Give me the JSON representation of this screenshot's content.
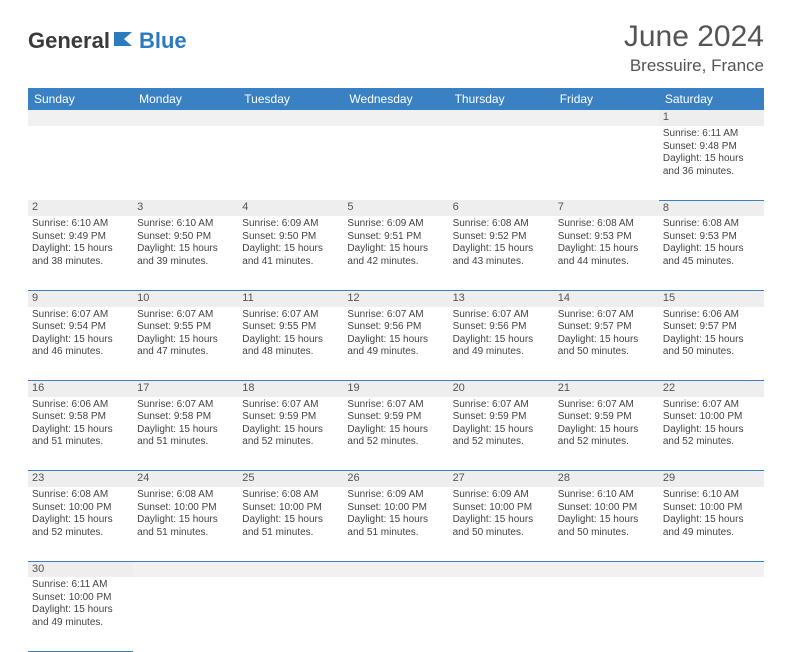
{
  "brand": {
    "part1": "General",
    "part2": "Blue"
  },
  "title": "June 2024",
  "location": "Bressuire, France",
  "colors": {
    "header_bg": "#3a81c4",
    "header_text": "#ffffff",
    "daynum_bg": "#eeeeee",
    "border": "#3a81c4",
    "text": "#444444",
    "brand_blue": "#2b7bbf"
  },
  "day_headers": [
    "Sunday",
    "Monday",
    "Tuesday",
    "Wednesday",
    "Thursday",
    "Friday",
    "Saturday"
  ],
  "weeks": [
    [
      null,
      null,
      null,
      null,
      null,
      null,
      {
        "n": "1",
        "sr": "6:11 AM",
        "ss": "9:48 PM",
        "dh": "15",
        "dm": "36"
      }
    ],
    [
      {
        "n": "2",
        "sr": "6:10 AM",
        "ss": "9:49 PM",
        "dh": "15",
        "dm": "38"
      },
      {
        "n": "3",
        "sr": "6:10 AM",
        "ss": "9:50 PM",
        "dh": "15",
        "dm": "39"
      },
      {
        "n": "4",
        "sr": "6:09 AM",
        "ss": "9:50 PM",
        "dh": "15",
        "dm": "41"
      },
      {
        "n": "5",
        "sr": "6:09 AM",
        "ss": "9:51 PM",
        "dh": "15",
        "dm": "42"
      },
      {
        "n": "6",
        "sr": "6:08 AM",
        "ss": "9:52 PM",
        "dh": "15",
        "dm": "43"
      },
      {
        "n": "7",
        "sr": "6:08 AM",
        "ss": "9:53 PM",
        "dh": "15",
        "dm": "44"
      },
      {
        "n": "8",
        "sr": "6:08 AM",
        "ss": "9:53 PM",
        "dh": "15",
        "dm": "45"
      }
    ],
    [
      {
        "n": "9",
        "sr": "6:07 AM",
        "ss": "9:54 PM",
        "dh": "15",
        "dm": "46"
      },
      {
        "n": "10",
        "sr": "6:07 AM",
        "ss": "9:55 PM",
        "dh": "15",
        "dm": "47"
      },
      {
        "n": "11",
        "sr": "6:07 AM",
        "ss": "9:55 PM",
        "dh": "15",
        "dm": "48"
      },
      {
        "n": "12",
        "sr": "6:07 AM",
        "ss": "9:56 PM",
        "dh": "15",
        "dm": "49"
      },
      {
        "n": "13",
        "sr": "6:07 AM",
        "ss": "9:56 PM",
        "dh": "15",
        "dm": "49"
      },
      {
        "n": "14",
        "sr": "6:07 AM",
        "ss": "9:57 PM",
        "dh": "15",
        "dm": "50"
      },
      {
        "n": "15",
        "sr": "6:06 AM",
        "ss": "9:57 PM",
        "dh": "15",
        "dm": "50"
      }
    ],
    [
      {
        "n": "16",
        "sr": "6:06 AM",
        "ss": "9:58 PM",
        "dh": "15",
        "dm": "51"
      },
      {
        "n": "17",
        "sr": "6:07 AM",
        "ss": "9:58 PM",
        "dh": "15",
        "dm": "51"
      },
      {
        "n": "18",
        "sr": "6:07 AM",
        "ss": "9:59 PM",
        "dh": "15",
        "dm": "52"
      },
      {
        "n": "19",
        "sr": "6:07 AM",
        "ss": "9:59 PM",
        "dh": "15",
        "dm": "52"
      },
      {
        "n": "20",
        "sr": "6:07 AM",
        "ss": "9:59 PM",
        "dh": "15",
        "dm": "52"
      },
      {
        "n": "21",
        "sr": "6:07 AM",
        "ss": "9:59 PM",
        "dh": "15",
        "dm": "52"
      },
      {
        "n": "22",
        "sr": "6:07 AM",
        "ss": "10:00 PM",
        "dh": "15",
        "dm": "52"
      }
    ],
    [
      {
        "n": "23",
        "sr": "6:08 AM",
        "ss": "10:00 PM",
        "dh": "15",
        "dm": "52"
      },
      {
        "n": "24",
        "sr": "6:08 AM",
        "ss": "10:00 PM",
        "dh": "15",
        "dm": "51"
      },
      {
        "n": "25",
        "sr": "6:08 AM",
        "ss": "10:00 PM",
        "dh": "15",
        "dm": "51"
      },
      {
        "n": "26",
        "sr": "6:09 AM",
        "ss": "10:00 PM",
        "dh": "15",
        "dm": "51"
      },
      {
        "n": "27",
        "sr": "6:09 AM",
        "ss": "10:00 PM",
        "dh": "15",
        "dm": "50"
      },
      {
        "n": "28",
        "sr": "6:10 AM",
        "ss": "10:00 PM",
        "dh": "15",
        "dm": "50"
      },
      {
        "n": "29",
        "sr": "6:10 AM",
        "ss": "10:00 PM",
        "dh": "15",
        "dm": "49"
      }
    ],
    [
      {
        "n": "30",
        "sr": "6:11 AM",
        "ss": "10:00 PM",
        "dh": "15",
        "dm": "49"
      },
      null,
      null,
      null,
      null,
      null,
      null
    ]
  ],
  "labels": {
    "sunrise": "Sunrise:",
    "sunset": "Sunset:",
    "daylight": "Daylight:",
    "hours": "hours",
    "and": "and",
    "minutes": "minutes."
  }
}
